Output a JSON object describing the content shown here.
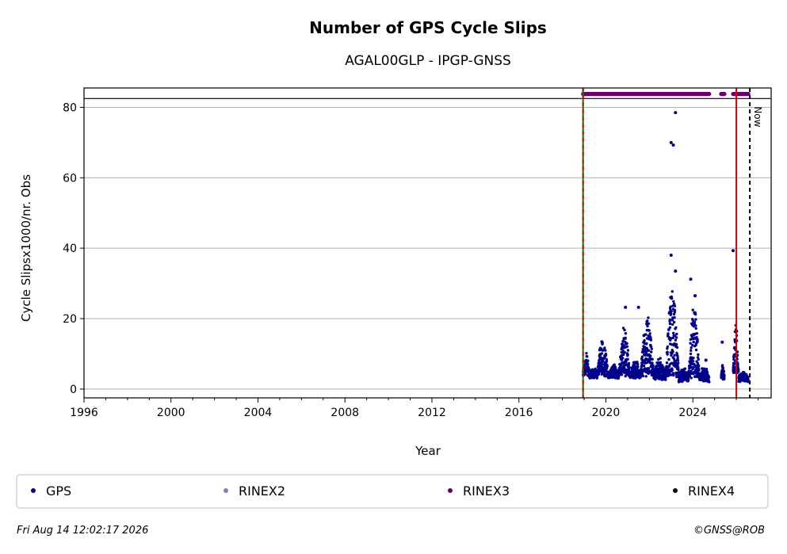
{
  "chart_data": {
    "type": "scatter",
    "title": "Number of GPS Cycle Slips",
    "subtitle": "AGAL00GLP - IPGP-GNSS",
    "xlabel": "Year",
    "ylabel": "Cycle Slipsx1000/nr. Obs",
    "xlim": [
      1996,
      2027.6
    ],
    "ylim": [
      -2.5,
      85.5
    ],
    "x_ticks": [
      1996,
      2000,
      2004,
      2008,
      2012,
      2016,
      2020,
      2024
    ],
    "x_tick_labels": [
      "1996",
      "2000",
      "2004",
      "2008",
      "2012",
      "2016",
      "2020",
      "2024"
    ],
    "y_ticks": [
      0,
      20,
      40,
      60,
      80
    ],
    "y_tick_labels": [
      "0",
      "20",
      "40",
      "60",
      "80"
    ],
    "grid": "horizontal",
    "hline_y": 82.5,
    "vlines": [
      {
        "x": 2018.95,
        "color": "#008000",
        "style": "solid"
      },
      {
        "x": 2018.95,
        "color": "#cc0000",
        "style": "dashed"
      },
      {
        "x": 2026.0,
        "color": "#cc0000",
        "style": "solid"
      },
      {
        "x": 2026.62,
        "color": "#000000",
        "style": "dashed"
      }
    ],
    "now_label": "Now",
    "rinex3_band": {
      "y": 83.8,
      "ranges": [
        [
          2018.95,
          2024.75
        ],
        [
          2025.3,
          2025.45
        ],
        [
          2025.85,
          2026.55
        ]
      ]
    },
    "series": [
      {
        "name": "GPS",
        "color": "#00008b"
      },
      {
        "name": "RINEX2",
        "color": "#7f7fbf"
      },
      {
        "name": "RINEX3",
        "color": "#6a006a"
      },
      {
        "name": "RINEX4",
        "color": "#1a0018"
      }
    ],
    "gps_segments": [
      {
        "x0": 2018.95,
        "x1": 2019.25,
        "base": 3.5,
        "amp": 5.5
      },
      {
        "x0": 2019.25,
        "x1": 2019.6,
        "base": 3.0,
        "amp": 2.0
      },
      {
        "x0": 2019.6,
        "x1": 2020.1,
        "base": 3.5,
        "amp": 10.0
      },
      {
        "x0": 2020.1,
        "x1": 2020.6,
        "base": 3.0,
        "amp": 3.0
      },
      {
        "x0": 2020.6,
        "x1": 2021.1,
        "base": 3.5,
        "amp": 13.0
      },
      {
        "x0": 2021.1,
        "x1": 2021.6,
        "base": 3.0,
        "amp": 4.0
      },
      {
        "x0": 2021.6,
        "x1": 2022.2,
        "base": 3.5,
        "amp": 16.0
      },
      {
        "x0": 2022.2,
        "x1": 2022.75,
        "base": 2.5,
        "amp": 5.0
      },
      {
        "x0": 2022.75,
        "x1": 2023.35,
        "base": 3.0,
        "amp": 25.0
      },
      {
        "x0": 2023.35,
        "x1": 2023.8,
        "base": 2.0,
        "amp": 3.0
      },
      {
        "x0": 2023.8,
        "x1": 2024.3,
        "base": 3.0,
        "amp": 20.0
      },
      {
        "x0": 2024.3,
        "x1": 2024.75,
        "base": 2.0,
        "amp": 3.5
      },
      {
        "x0": 2025.3,
        "x1": 2025.45,
        "base": 2.5,
        "amp": 4.0
      },
      {
        "x0": 2025.85,
        "x1": 2026.1,
        "base": 4.0,
        "amp": 14.0
      },
      {
        "x0": 2026.1,
        "x1": 2026.55,
        "base": 2.0,
        "amp": 2.0
      }
    ],
    "gps_outliers": [
      {
        "x": 2023.0,
        "y": 70.0
      },
      {
        "x": 2023.1,
        "y": 69.3
      },
      {
        "x": 2023.2,
        "y": 78.5
      },
      {
        "x": 2023.0,
        "y": 38.0
      },
      {
        "x": 2023.2,
        "y": 33.5
      },
      {
        "x": 2025.85,
        "y": 39.3
      },
      {
        "x": 2023.9,
        "y": 31.2
      },
      {
        "x": 2021.5,
        "y": 23.2
      },
      {
        "x": 2020.9,
        "y": 23.2
      },
      {
        "x": 2025.35,
        "y": 13.3
      },
      {
        "x": 2024.6,
        "y": 8.2
      },
      {
        "x": 2024.1,
        "y": 26.5
      }
    ],
    "legend_position": "bottom"
  },
  "footer": {
    "timestamp": "Fri Aug 14 12:02:17 2026",
    "copyright": "©GNSS@ROB"
  }
}
